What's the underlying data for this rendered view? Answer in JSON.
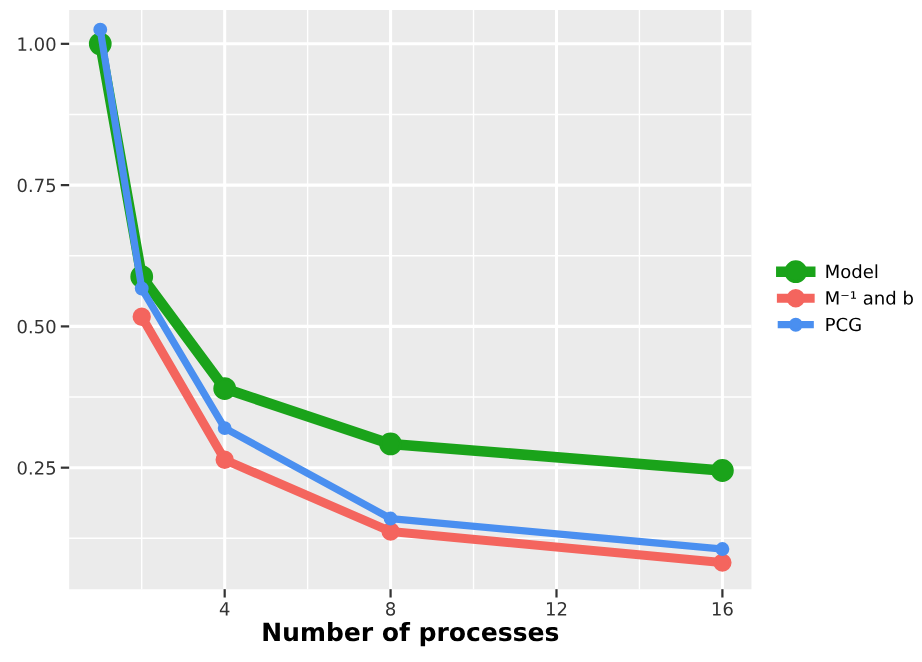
{
  "chart_data": {
    "type": "line",
    "xlabel": "Number of processes",
    "x": [
      1,
      2,
      4,
      8,
      16
    ],
    "series": [
      {
        "name": "Model",
        "color": "#1aa31a",
        "values": [
          1.0,
          0.588,
          0.39,
          0.292,
          0.245
        ]
      },
      {
        "name": "M⁻¹ and b",
        "color": "#f4655e",
        "values": [
          null,
          0.517,
          0.264,
          0.137,
          0.082
        ]
      },
      {
        "name": "PCG",
        "color": "#4a8ff0",
        "values": [
          1.025,
          0.567,
          0.32,
          0.16,
          0.106
        ]
      }
    ],
    "xlim": [
      0.25,
      16.7
    ],
    "ylim": [
      0.035,
      1.06
    ],
    "xticks": [
      4,
      8,
      12,
      16
    ],
    "yticks": [
      {
        "value": 0.25,
        "label": "0.25"
      },
      {
        "value": 0.5,
        "label": "0.50"
      },
      {
        "value": 0.75,
        "label": "0.75"
      },
      {
        "value": 1.0,
        "label": "1.00"
      }
    ],
    "grid": true,
    "legend": "right",
    "marker": "circle",
    "line_style": "solid"
  }
}
